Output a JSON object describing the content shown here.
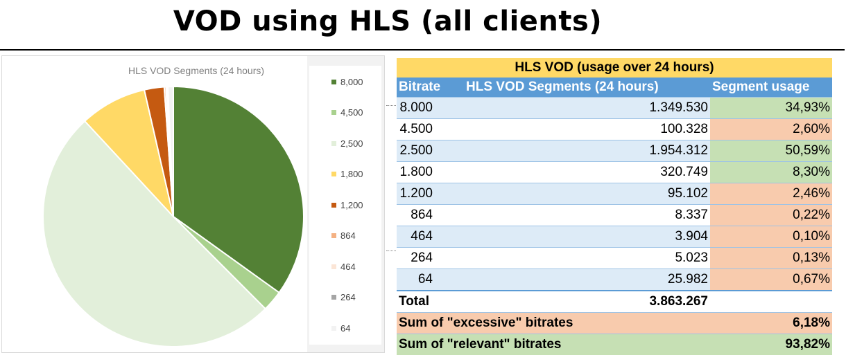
{
  "page": {
    "title": "VOD using HLS (all clients)"
  },
  "chart_data": {
    "type": "pie",
    "title": "HLS VOD Segments (24 hours)",
    "categories": [
      "8,000",
      "4,500",
      "2,500",
      "1,800",
      "1,200",
      "864",
      "464",
      "264",
      "64"
    ],
    "values": [
      1349530,
      100328,
      1954312,
      320749,
      95102,
      8337,
      3904,
      5023,
      25982
    ],
    "colors": [
      "#538135",
      "#a9d18e",
      "#e2efda",
      "#ffd966",
      "#c55a11",
      "#f4b183",
      "#fbe5d6",
      "#a5a5a5",
      "#f2f2f2"
    ],
    "legend_position": "right"
  },
  "table": {
    "caption": "HLS VOD (usage over 24 hours)",
    "headers": [
      "Bitrate",
      "HLS VOD Segments (24 hours)",
      "Segment usage"
    ],
    "rows": [
      {
        "bitrate": "8.000",
        "segments": "1.349.530",
        "usage": "34,93%",
        "usage_class": "green"
      },
      {
        "bitrate": "4.500",
        "segments": "100.328",
        "usage": "2,60%",
        "usage_class": "orange"
      },
      {
        "bitrate": "2.500",
        "segments": "1.954.312",
        "usage": "50,59%",
        "usage_class": "green"
      },
      {
        "bitrate": "1.800",
        "segments": "320.749",
        "usage": "8,30%",
        "usage_class": "green"
      },
      {
        "bitrate": "1.200",
        "segments": "95.102",
        "usage": "2,46%",
        "usage_class": "orange"
      },
      {
        "bitrate": "864",
        "segments": "8.337",
        "usage": "0,22%",
        "usage_class": "orange"
      },
      {
        "bitrate": "464",
        "segments": "3.904",
        "usage": "0,10%",
        "usage_class": "orange"
      },
      {
        "bitrate": "264",
        "segments": "5.023",
        "usage": "0,13%",
        "usage_class": "orange"
      },
      {
        "bitrate": "64",
        "segments": "25.982",
        "usage": "0,67%",
        "usage_class": "orange"
      }
    ],
    "total_label": "Total",
    "total_value": "3.863.267",
    "excessive_label": "Sum of \"excessive\" bitrates",
    "excessive_value": "6,18%",
    "relevant_label": "Sum of \"relevant\" bitrates",
    "relevant_value": "93,82%"
  }
}
